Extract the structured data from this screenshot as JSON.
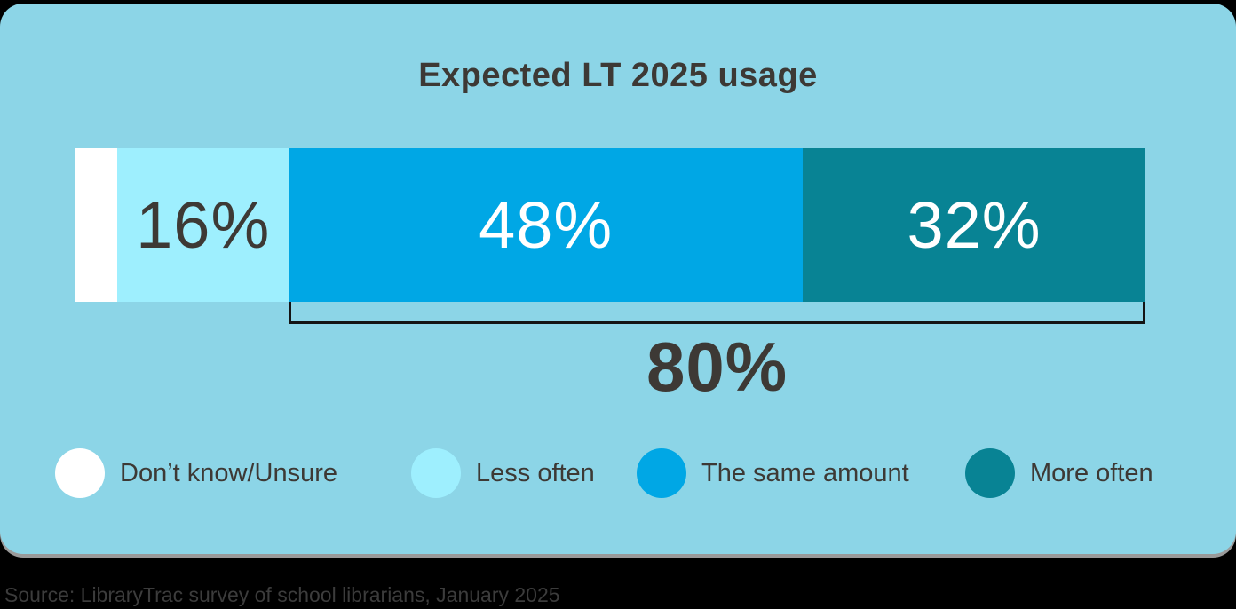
{
  "chart": {
    "title": "Expected LT 2025 usage"
  },
  "chart_data": {
    "type": "bar",
    "subtype": "horizontal-stacked-single-bar",
    "title": "Expected LT 2025 usage",
    "categories": [
      "Don’t know/Unsure",
      "Less often",
      "The same amount",
      "More often"
    ],
    "values": [
      4,
      16,
      48,
      32
    ],
    "unit": "%",
    "segment_labels": [
      "",
      "16%",
      "48%",
      "32%"
    ],
    "colors": [
      "#ffffff",
      "#9eeffe",
      "#00a7e5",
      "#088394"
    ],
    "label_colors": [
      "#3d3935",
      "#3d3935",
      "#ffffff",
      "#ffffff"
    ],
    "xlim": [
      0,
      100
    ],
    "grid": false,
    "legend_position": "bottom",
    "annotation": {
      "text": "80%",
      "covers": [
        "The same amount",
        "More often"
      ],
      "span_percent": [
        20,
        100
      ]
    }
  },
  "legend": {
    "items": [
      {
        "label": "Don’t know/Unsure",
        "color": "#ffffff"
      },
      {
        "label": "Less often",
        "color": "#9eeffe"
      },
      {
        "label": "The same amount",
        "color": "#00a7e5"
      },
      {
        "label": "More often",
        "color": "#088394"
      }
    ]
  },
  "footer": {
    "source": "Source: LibraryTrac survey of school librarians, January 2025"
  },
  "colors": {
    "page_background": "#000000",
    "card_background": "#8cd5e7",
    "text": "#3d3935",
    "bracket": "#141414",
    "card_shadow": "#9a9a9a",
    "caption_text": "#3c3c3c"
  }
}
